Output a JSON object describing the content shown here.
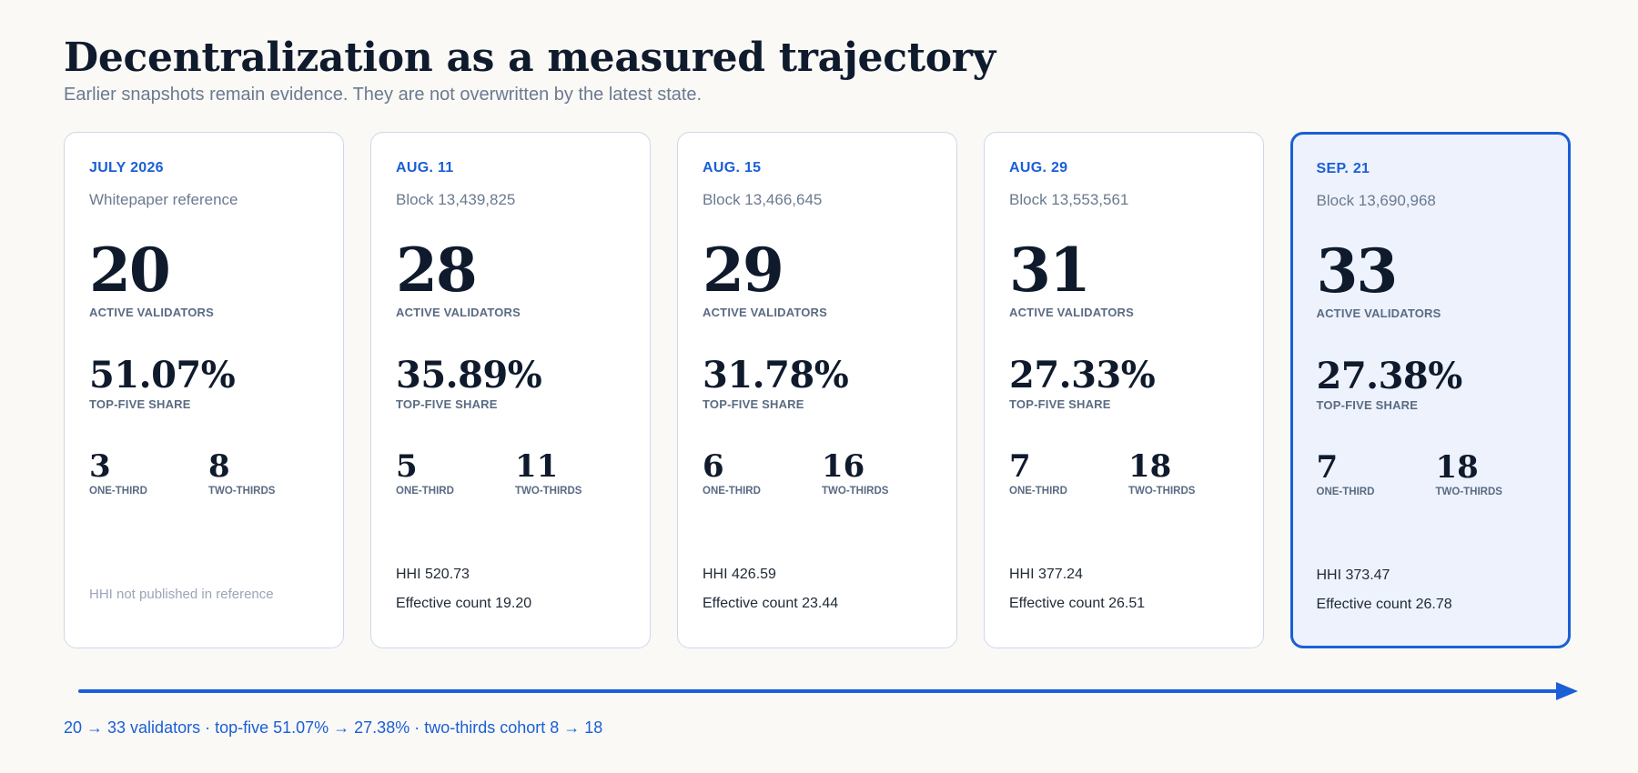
{
  "header": {
    "title": "Decentralization as a measured trajectory",
    "subtitle": "Earlier snapshots remain evidence. They are not overwritten by the latest state."
  },
  "labels": {
    "active_validators": "ACTIVE VALIDATORS",
    "top_five_share": "TOP-FIVE SHARE",
    "one_third": "ONE-THIRD",
    "two_thirds": "TWO-THIRDS"
  },
  "snapshots": [
    {
      "date": "JULY 2026",
      "reference": "Whitepaper reference",
      "validators": "20",
      "top_five_share": "51.07%",
      "one_third": "3",
      "two_thirds": "8",
      "note": "HHI not published in reference",
      "highlighted": false
    },
    {
      "date": "AUG. 11",
      "reference": "Block 13,439,825",
      "validators": "28",
      "top_five_share": "35.89%",
      "one_third": "5",
      "two_thirds": "11",
      "hhi": "HHI 520.73",
      "effective_count": "Effective count 19.20",
      "highlighted": false
    },
    {
      "date": "AUG. 15",
      "reference": "Block 13,466,645",
      "validators": "29",
      "top_five_share": "31.78%",
      "one_third": "6",
      "two_thirds": "16",
      "hhi": "HHI 426.59",
      "effective_count": "Effective count 23.44",
      "highlighted": false
    },
    {
      "date": "AUG. 29",
      "reference": "Block 13,553,561",
      "validators": "31",
      "top_five_share": "27.33%",
      "one_third": "7",
      "two_thirds": "18",
      "hhi": "HHI 377.24",
      "effective_count": "Effective count 26.51",
      "highlighted": false
    },
    {
      "date": "SEP. 21",
      "reference": "Block 13,690,968",
      "validators": "33",
      "top_five_share": "27.38%",
      "one_third": "7",
      "two_thirds": "18",
      "hhi": "HHI 373.47",
      "effective_count": "Effective count 26.78",
      "highlighted": true
    }
  ],
  "summary": "20 → 33 validators · top-five 51.07% → 27.38% · two-thirds cohort 8 → 18",
  "colors": {
    "accent": "#1a5fd6",
    "highlight_background": "#edf2fd",
    "card_border": "#cfd8e6",
    "heading": "#0f1b2d",
    "muted": "#6b7a8f"
  }
}
